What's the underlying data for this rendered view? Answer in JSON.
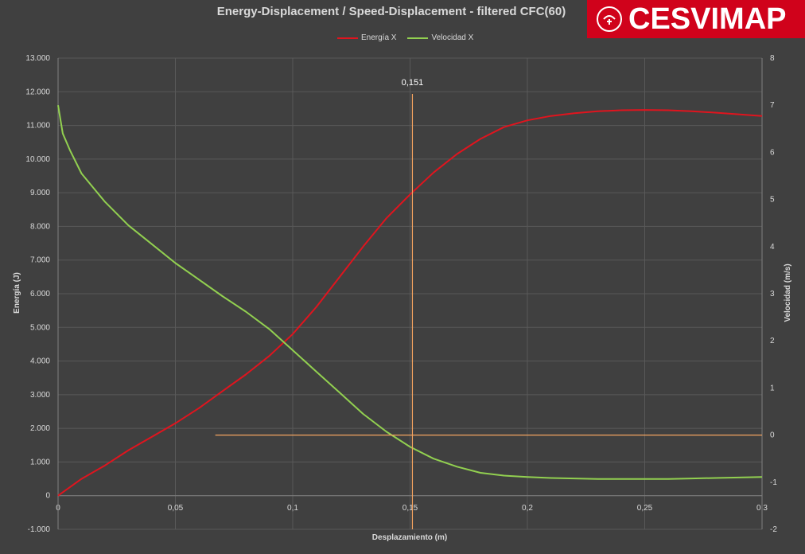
{
  "logo": {
    "text": "CESVIMAP",
    "icon": "cesvimap-emblem-icon"
  },
  "chart_data": {
    "type": "line",
    "title": "Energy-Displacement / Speed-Displacement - filtered CFC(60)",
    "xlabel": "Desplazamiento (m)",
    "ylabel": "Energía (J)",
    "y2label": "Velocidad (m/s)",
    "xlim": [
      0,
      0.3
    ],
    "ylim": [
      -1000,
      13000
    ],
    "y2lim": [
      -2,
      8
    ],
    "x_ticks": [
      0,
      0.05,
      0.1,
      0.15,
      0.2,
      0.25,
      0.3
    ],
    "x_tick_labels": [
      "0",
      "0,05",
      "0,1",
      "0,15",
      "0,2",
      "0,25",
      "0,3"
    ],
    "y_ticks": [
      -1000,
      0,
      1000,
      2000,
      3000,
      4000,
      5000,
      6000,
      7000,
      8000,
      9000,
      10000,
      11000,
      12000,
      13000
    ],
    "y_tick_labels": [
      "-1.000",
      "0",
      "1.000",
      "2.000",
      "3.000",
      "4.000",
      "5.000",
      "6.000",
      "7.000",
      "8.000",
      "9.000",
      "10.000",
      "11.000",
      "12.000",
      "13.000"
    ],
    "y2_ticks": [
      -2,
      -1,
      0,
      1,
      2,
      3,
      4,
      5,
      6,
      7,
      8
    ],
    "y2_tick_labels": [
      "-2",
      "-1",
      "0",
      "1",
      "2",
      "3",
      "4",
      "5",
      "6",
      "7",
      "8"
    ],
    "grid": true,
    "legend_position": "top-center",
    "series": [
      {
        "name": "Energía X",
        "axis": "left",
        "color": "#e0141e",
        "x": [
          0,
          0.01,
          0.02,
          0.03,
          0.04,
          0.05,
          0.06,
          0.07,
          0.08,
          0.09,
          0.1,
          0.11,
          0.12,
          0.13,
          0.14,
          0.15,
          0.16,
          0.17,
          0.18,
          0.19,
          0.2,
          0.21,
          0.22,
          0.23,
          0.24,
          0.25,
          0.26,
          0.27,
          0.28,
          0.29,
          0.3
        ],
        "y": [
          0,
          500,
          900,
          1350,
          1750,
          2150,
          2600,
          3100,
          3600,
          4150,
          4800,
          5600,
          6500,
          7400,
          8250,
          8950,
          9600,
          10150,
          10600,
          10950,
          11150,
          11280,
          11360,
          11420,
          11450,
          11460,
          11450,
          11420,
          11380,
          11330,
          11280
        ]
      },
      {
        "name": "Velocidad X",
        "axis": "right",
        "color": "#92d050",
        "x": [
          0,
          0.002,
          0.005,
          0.01,
          0.02,
          0.03,
          0.04,
          0.05,
          0.06,
          0.07,
          0.08,
          0.09,
          0.1,
          0.11,
          0.12,
          0.13,
          0.14,
          0.15,
          0.16,
          0.17,
          0.18,
          0.19,
          0.2,
          0.21,
          0.22,
          0.23,
          0.24,
          0.25,
          0.26,
          0.27,
          0.28,
          0.29,
          0.3
        ],
        "y": [
          7.0,
          6.4,
          6.05,
          5.55,
          4.95,
          4.45,
          4.05,
          3.65,
          3.3,
          2.95,
          2.62,
          2.25,
          1.8,
          1.35,
          0.9,
          0.45,
          0.07,
          -0.25,
          -0.5,
          -0.67,
          -0.8,
          -0.86,
          -0.89,
          -0.91,
          -0.92,
          -0.93,
          -0.93,
          -0.93,
          -0.93,
          -0.92,
          -0.91,
          -0.9,
          -0.89
        ]
      }
    ],
    "annotations": [
      {
        "label": "0,151",
        "x": 0.151,
        "color": "#f4a460"
      }
    ],
    "reference_line": {
      "axis": "right",
      "y": 0,
      "x_start": 0.067,
      "x_end": 0.3,
      "color": "#f4a460"
    }
  }
}
